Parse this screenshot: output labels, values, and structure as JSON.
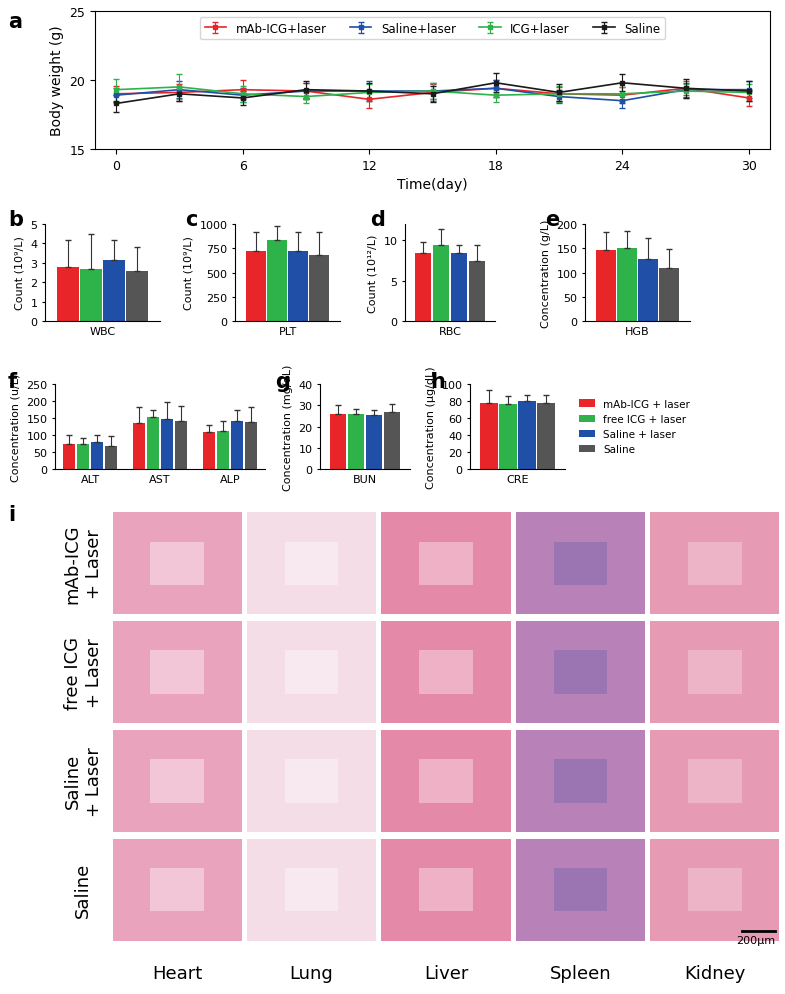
{
  "chart_data": [
    {
      "panel": "a",
      "type": "line",
      "x_label": "Time(day)",
      "y_label": "Body weight (g)",
      "x": [
        0,
        3,
        6,
        9,
        12,
        15,
        18,
        21,
        24,
        27,
        30
      ],
      "xlim": [
        -1,
        31
      ],
      "xticks": [
        0,
        6,
        12,
        18,
        24,
        30
      ],
      "ylim": [
        15,
        25
      ],
      "yticks": [
        15,
        20,
        25
      ],
      "legend": "upper center",
      "marker": "square",
      "series": [
        {
          "name": "mAb-ICG+laser",
          "color": "#e8262a",
          "values": [
            19.0,
            19.1,
            19.3,
            19.2,
            18.6,
            19.1,
            19.4,
            19.0,
            18.9,
            19.4,
            18.7
          ],
          "errors": [
            0.6,
            0.6,
            0.7,
            0.6,
            0.6,
            0.6,
            0.6,
            0.5,
            0.6,
            0.5,
            0.6
          ]
        },
        {
          "name": "Saline+laser",
          "color": "#1f4fa6",
          "values": [
            18.9,
            19.3,
            18.9,
            19.2,
            19.2,
            19.2,
            19.4,
            18.8,
            18.5,
            19.3,
            19.3
          ],
          "errors": [
            0.5,
            0.6,
            0.5,
            0.6,
            0.7,
            0.6,
            0.6,
            0.5,
            0.5,
            0.5,
            0.6
          ]
        },
        {
          "name": "ICG+laser",
          "color": "#2db34a",
          "values": [
            19.3,
            19.5,
            19.0,
            18.8,
            19.1,
            19.2,
            18.9,
            19.0,
            19.0,
            19.2,
            19.1
          ],
          "errors": [
            0.8,
            0.9,
            0.6,
            0.5,
            0.6,
            0.6,
            0.5,
            0.6,
            0.5,
            0.5,
            0.6
          ]
        },
        {
          "name": "Saline",
          "color": "#1a1a1a",
          "values": [
            18.3,
            19.0,
            18.7,
            19.3,
            19.2,
            19.0,
            19.8,
            19.1,
            19.8,
            19.4,
            19.2
          ],
          "errors": [
            0.6,
            0.5,
            0.5,
            0.6,
            0.6,
            0.6,
            0.7,
            0.6,
            0.6,
            0.7,
            0.7
          ]
        }
      ]
    },
    {
      "panel": "b",
      "type": "bar",
      "y_label": "Count (10⁹/L)",
      "categories": [
        "WBC"
      ],
      "ylim": [
        0,
        5
      ],
      "yticks": [
        0,
        1,
        2,
        3,
        4,
        5
      ],
      "series": [
        {
          "color": "#e8262a",
          "values": [
            2.8
          ],
          "errors": [
            1.4
          ]
        },
        {
          "color": "#2db34a",
          "values": [
            2.7
          ],
          "errors": [
            1.8
          ]
        },
        {
          "color": "#1f4fa6",
          "values": [
            3.15
          ],
          "errors": [
            1.05
          ]
        },
        {
          "color": "#555555",
          "values": [
            2.6
          ],
          "errors": [
            1.2
          ]
        }
      ]
    },
    {
      "panel": "c",
      "type": "bar",
      "y_label": "Count (10⁹/L)",
      "categories": [
        "PLT"
      ],
      "ylim": [
        0,
        1000
      ],
      "yticks": [
        0,
        250,
        500,
        750,
        1000
      ],
      "series": [
        {
          "color": "#e8262a",
          "values": [
            725
          ],
          "errors": [
            190
          ]
        },
        {
          "color": "#2db34a",
          "values": [
            830
          ],
          "errors": [
            145
          ]
        },
        {
          "color": "#1f4fa6",
          "values": [
            725
          ],
          "errors": [
            190
          ]
        },
        {
          "color": "#555555",
          "values": [
            685
          ],
          "errors": [
            235
          ]
        }
      ]
    },
    {
      "panel": "d",
      "type": "bar",
      "y_label": "Count (10¹²/L)",
      "categories": [
        "RBC"
      ],
      "ylim": [
        0,
        12
      ],
      "yticks": [
        0,
        5,
        10
      ],
      "series": [
        {
          "color": "#e8262a",
          "values": [
            8.4
          ],
          "errors": [
            1.4
          ]
        },
        {
          "color": "#2db34a",
          "values": [
            9.4
          ],
          "errors": [
            2.0
          ]
        },
        {
          "color": "#1f4fa6",
          "values": [
            8.4
          ],
          "errors": [
            1.0
          ]
        },
        {
          "color": "#555555",
          "values": [
            7.4
          ],
          "errors": [
            2.0
          ]
        }
      ]
    },
    {
      "panel": "e",
      "type": "bar",
      "y_label": "Concentration (g/L)",
      "categories": [
        "HGB"
      ],
      "ylim": [
        0,
        200
      ],
      "yticks": [
        0,
        50,
        100,
        150,
        200
      ],
      "series": [
        {
          "color": "#e8262a",
          "values": [
            146
          ],
          "errors": [
            37
          ]
        },
        {
          "color": "#2db34a",
          "values": [
            150
          ],
          "errors": [
            35
          ]
        },
        {
          "color": "#1f4fa6",
          "values": [
            127
          ],
          "errors": [
            44
          ]
        },
        {
          "color": "#555555",
          "values": [
            110
          ],
          "errors": [
            38
          ]
        }
      ]
    },
    {
      "panel": "f",
      "type": "bar",
      "y_label": "Concentration (u/L)",
      "categories": [
        "ALT",
        "AST",
        "ALP"
      ],
      "ylim": [
        0,
        250
      ],
      "yticks": [
        0,
        50,
        100,
        150,
        200,
        250
      ],
      "series": [
        {
          "color": "#e8262a",
          "values": [
            73,
            136,
            110
          ],
          "errors": [
            27,
            45,
            20
          ]
        },
        {
          "color": "#2db34a",
          "values": [
            74,
            154,
            111
          ],
          "errors": [
            17,
            20,
            30
          ]
        },
        {
          "color": "#1f4fa6",
          "values": [
            80,
            148,
            141
          ],
          "errors": [
            19,
            48,
            32
          ]
        },
        {
          "color": "#555555",
          "values": [
            68,
            140,
            137
          ],
          "errors": [
            29,
            44,
            45
          ]
        }
      ]
    },
    {
      "panel": "g",
      "type": "bar",
      "y_label": "Concentration (mg/dL)",
      "categories": [
        "BUN"
      ],
      "ylim": [
        0,
        40
      ],
      "yticks": [
        0,
        10,
        20,
        30,
        40
      ],
      "series": [
        {
          "color": "#e8262a",
          "values": [
            26
          ],
          "errors": [
            4
          ]
        },
        {
          "color": "#2db34a",
          "values": [
            25.8
          ],
          "errors": [
            2.5
          ]
        },
        {
          "color": "#1f4fa6",
          "values": [
            25.4
          ],
          "errors": [
            2.5
          ]
        },
        {
          "color": "#555555",
          "values": [
            27
          ],
          "errors": [
            3.6
          ]
        }
      ]
    },
    {
      "panel": "h",
      "type": "bar",
      "y_label": "Concentration (μg/dL)",
      "categories": [
        "CRE"
      ],
      "ylim": [
        0,
        100
      ],
      "yticks": [
        0,
        20,
        40,
        60,
        80,
        100
      ],
      "legend": "center left",
      "series": [
        {
          "name": "mAb-ICG + laser",
          "color": "#e8262a",
          "values": [
            78
          ],
          "errors": [
            15
          ]
        },
        {
          "name": "free ICG + laser",
          "color": "#2db34a",
          "values": [
            76
          ],
          "errors": [
            10
          ]
        },
        {
          "name": "Saline + laser",
          "color": "#1f4fa6",
          "values": [
            80.5
          ],
          "errors": [
            6
          ]
        },
        {
          "name": "Saline",
          "color": "#555555",
          "values": [
            77.5
          ],
          "errors": [
            9
          ]
        }
      ]
    }
  ],
  "histology": {
    "panel": "i",
    "rows": [
      "mAb-ICG\n+ Laser",
      "free ICG\n+ Laser",
      "Saline\n+ Laser",
      "Saline"
    ],
    "columns": [
      "Heart",
      "Lung",
      "Liver",
      "Spleen",
      "Kidney"
    ],
    "scale_bar": "200μm"
  }
}
